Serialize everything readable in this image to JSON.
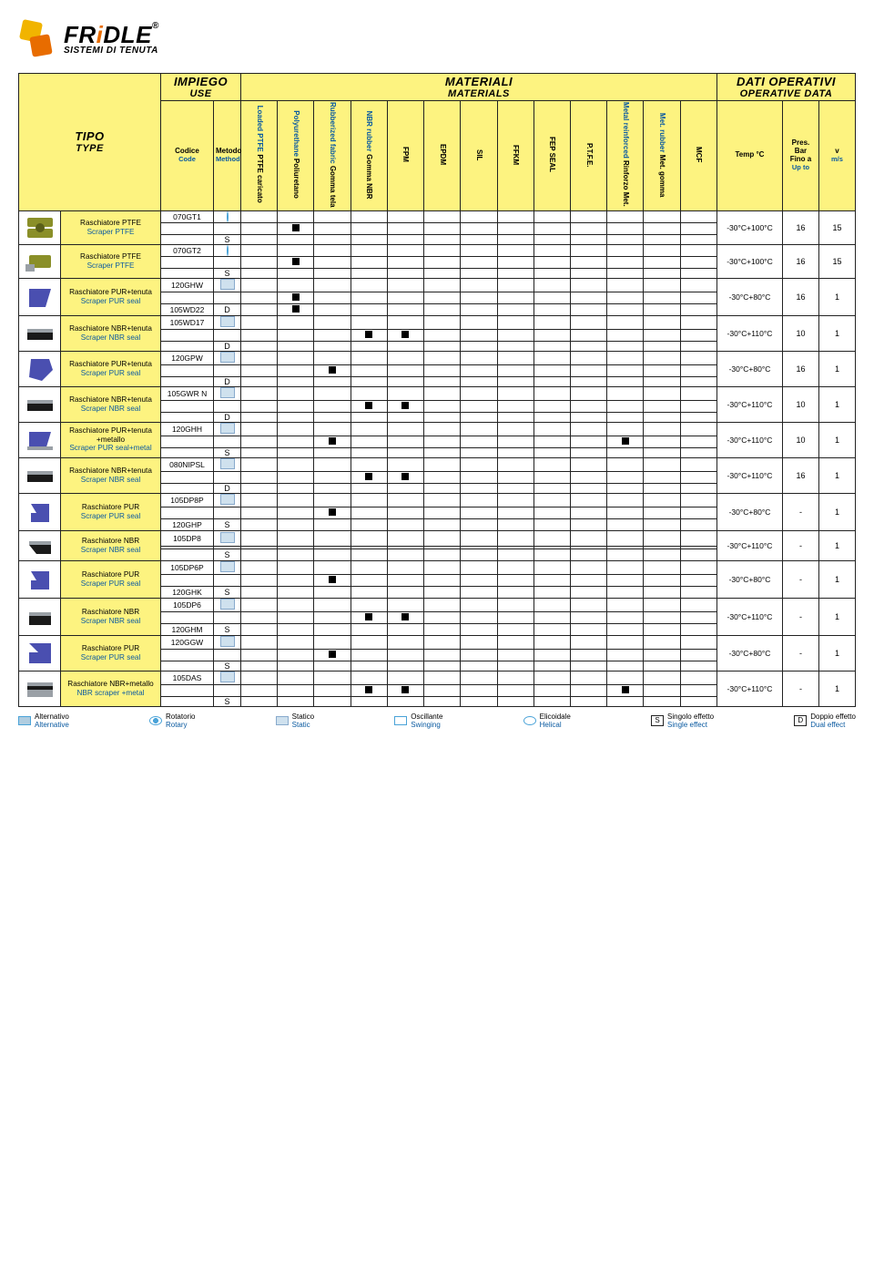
{
  "brand": {
    "name": "FRiDLE",
    "tagline": "SISTEMI DI TENUTA",
    "reg": "®"
  },
  "headers": {
    "tipo_it": "TIPO",
    "tipo_en": "TYPE",
    "impiego_it": "IMPIEGO",
    "impiego_en": "USE",
    "materiali_it": "MATERIALI",
    "materiali_en": "MATERIALS",
    "dati_it": "DATI OPERATIVI",
    "dati_en": "OPERATIVE DATA",
    "codice_it": "Codice",
    "codice_en": "Code",
    "metodo_it": "Metodo",
    "metodo_en": "Method",
    "temp": "Temp °C",
    "pres_it": "Pres. Bar",
    "pres_sub_it": "Fino a",
    "pres_en": "Up to",
    "v_it": "v",
    "v_en": "m/s"
  },
  "material_cols": [
    {
      "it": "PTFE caricato",
      "en": "Loaded PTFE"
    },
    {
      "it": "Poliuretano",
      "en": "Polyurethane"
    },
    {
      "it": "Gomma tela",
      "en": "Rubberized fabric"
    },
    {
      "it": "Gomma NBR",
      "en": "NBR rubber"
    },
    {
      "it": "FPM",
      "en": ""
    },
    {
      "it": "EPDM",
      "en": ""
    },
    {
      "it": "SIL",
      "en": ""
    },
    {
      "it": "FFKM",
      "en": ""
    },
    {
      "it": "FEP SEAL",
      "en": ""
    },
    {
      "it": "P.T.F.E.",
      "en": ""
    },
    {
      "it": "Rinforzo Met.",
      "en": "Metal reinforced"
    },
    {
      "it": "Met. gomma",
      "en": "Met. rubber"
    },
    {
      "it": "MCF",
      "en": ""
    }
  ],
  "rows": [
    {
      "name_it": "Raschiatore PTFE",
      "name_en": "Scraper PTFE",
      "codes": [
        "070GT1"
      ],
      "methods": [
        "rot",
        "",
        "S"
      ],
      "materials": [
        0,
        1,
        0,
        0,
        0,
        0,
        0,
        0,
        0,
        0,
        0,
        0,
        0
      ],
      "temp": "-30°C+100°C",
      "bar": "16",
      "v": "15",
      "shape": "ptfe1"
    },
    {
      "name_it": "Raschiatore PTFE",
      "name_en": "Scraper PTFE",
      "codes": [
        "070GT2"
      ],
      "methods": [
        "rot",
        "",
        "S"
      ],
      "materials": [
        0,
        1,
        0,
        0,
        0,
        0,
        0,
        0,
        0,
        0,
        0,
        0,
        0
      ],
      "temp": "-30°C+100°C",
      "bar": "16",
      "v": "15",
      "shape": "ptfe2"
    },
    {
      "name_it": "Raschiatore PUR+tenuta",
      "name_en": "Scraper PUR seal",
      "codes": [
        "120GHW",
        "105WD22"
      ],
      "methods": [
        "stat",
        "",
        "D"
      ],
      "materials": [
        0,
        1,
        0,
        0,
        0,
        0,
        0,
        0,
        0,
        0,
        0,
        0,
        0
      ],
      "mat_extra_row": [
        0,
        1,
        0,
        0,
        0,
        0,
        0,
        0,
        0,
        0,
        0,
        0,
        0
      ],
      "temp": "-30°C+80°C",
      "bar": "16",
      "v": "1",
      "shape": "pur-blue"
    },
    {
      "name_it": "Raschiatore NBR+tenuta",
      "name_en": "Scraper NBR seal",
      "codes": [
        "105WD17"
      ],
      "methods": [
        "stat",
        "",
        "D"
      ],
      "materials": [
        0,
        0,
        0,
        1,
        1,
        0,
        0,
        0,
        0,
        0,
        0,
        0,
        0
      ],
      "temp": "-30°C+110°C",
      "bar": "10",
      "v": "1",
      "shape": "nbr-strip"
    },
    {
      "name_it": "Raschiatore PUR+tenuta",
      "name_en": "Scraper PUR seal",
      "codes": [
        "120GPW"
      ],
      "methods": [
        "stat",
        "",
        "D"
      ],
      "materials": [
        0,
        0,
        1,
        0,
        0,
        0,
        0,
        0,
        0,
        0,
        0,
        0,
        0
      ],
      "temp": "-30°C+80°C",
      "bar": "16",
      "v": "1",
      "shape": "pur-blue2"
    },
    {
      "name_it": "Raschiatore NBR+tenuta",
      "name_en": "Scraper NBR seal",
      "codes": [
        "105GWR N"
      ],
      "methods": [
        "stat",
        "",
        "D"
      ],
      "materials": [
        0,
        0,
        0,
        1,
        1,
        0,
        0,
        0,
        0,
        0,
        0,
        0,
        0
      ],
      "temp": "-30°C+110°C",
      "bar": "10",
      "v": "1",
      "shape": "nbr-strip"
    },
    {
      "name_it": "Raschiatore PUR+tenuta +metallo",
      "name_en": "Scraper PUR seal+metal",
      "codes": [
        "120GHH"
      ],
      "methods": [
        "stat",
        "",
        "S"
      ],
      "materials": [
        0,
        0,
        1,
        0,
        0,
        0,
        0,
        0,
        0,
        0,
        1,
        0,
        0
      ],
      "temp": "-30°C+110°C",
      "bar": "10",
      "v": "1",
      "shape": "pur-metal"
    },
    {
      "name_it": "Raschiatore NBR+tenuta",
      "name_en": "Scraper NBR seal",
      "codes": [
        "080NIPSL"
      ],
      "methods": [
        "stat",
        "",
        "D"
      ],
      "materials": [
        0,
        0,
        0,
        1,
        1,
        0,
        0,
        0,
        0,
        0,
        0,
        0,
        0
      ],
      "temp": "-30°C+110°C",
      "bar": "16",
      "v": "1",
      "shape": "nbr-strip"
    },
    {
      "name_it": "Raschiatore PUR",
      "name_en": "Scraper PUR seal",
      "codes": [
        "105DP8P",
        "120GHP"
      ],
      "methods": [
        "stat",
        "",
        "S"
      ],
      "materials": [
        0,
        0,
        1,
        0,
        0,
        0,
        0,
        0,
        0,
        0,
        0,
        0,
        0
      ],
      "temp": "-30°C+80°C",
      "bar": "-",
      "v": "1",
      "shape": "pur-solid"
    },
    {
      "name_it": "Raschiatore NBR",
      "name_en": "Scraper NBR seal",
      "codes": [
        "105DP8"
      ],
      "methods": [
        "stat",
        "",
        "S"
      ],
      "materials": [
        0,
        0,
        0,
        0,
        0,
        0,
        0,
        0,
        0,
        0,
        0,
        0,
        0
      ],
      "temp": "-30°C+110°C",
      "bar": "-",
      "v": "1",
      "shape": "nbr-small"
    },
    {
      "name_it": "Raschiatore PUR",
      "name_en": "Scraper PUR seal",
      "codes": [
        "105DP6P",
        "120GHK"
      ],
      "methods": [
        "stat",
        "",
        "S"
      ],
      "materials": [
        0,
        0,
        1,
        0,
        0,
        0,
        0,
        0,
        0,
        0,
        0,
        0,
        0
      ],
      "temp": "-30°C+80°C",
      "bar": "-",
      "v": "1",
      "shape": "pur-solid"
    },
    {
      "name_it": "Raschiatore NBR",
      "name_en": "Scraper NBR seal",
      "codes": [
        "105DP6",
        "120GHM"
      ],
      "methods": [
        "stat",
        "",
        "S"
      ],
      "materials": [
        0,
        0,
        0,
        1,
        1,
        0,
        0,
        0,
        0,
        0,
        0,
        0,
        0
      ],
      "temp": "-30°C+110°C",
      "bar": "-",
      "v": "1",
      "shape": "nbr-small2"
    },
    {
      "name_it": "Raschiatore PUR",
      "name_en": "Scraper PUR seal",
      "codes": [
        "120GGW"
      ],
      "methods": [
        "stat",
        "",
        "S"
      ],
      "materials": [
        0,
        0,
        1,
        0,
        0,
        0,
        0,
        0,
        0,
        0,
        0,
        0,
        0
      ],
      "temp": "-30°C+80°C",
      "bar": "-",
      "v": "1",
      "shape": "pur-big"
    },
    {
      "name_it": "Raschiatore NBR+metallo",
      "name_en": "NBR scraper +metal",
      "codes": [
        "105DAS"
      ],
      "methods": [
        "stat",
        "",
        "S"
      ],
      "materials": [
        0,
        0,
        0,
        1,
        1,
        0,
        0,
        0,
        0,
        0,
        1,
        0,
        0
      ],
      "temp": "-30°C+110°C",
      "bar": "-",
      "v": "1",
      "shape": "nbr-metal"
    }
  ],
  "legend": [
    {
      "it": "Alternativo",
      "en": "Alternative",
      "cls": "lg-alt"
    },
    {
      "it": "Rotatorio",
      "en": "Rotary",
      "cls": "lg-rot"
    },
    {
      "it": "Statico",
      "en": "Static",
      "cls": "lg-stat"
    },
    {
      "it": "Oscillante",
      "en": "Swinging",
      "cls": "lg-osc"
    },
    {
      "it": "Elicoidale",
      "en": "Helical",
      "cls": "lg-hel"
    },
    {
      "it": "Singolo effetto",
      "en": "Single effect",
      "letter": "S"
    },
    {
      "it": "Doppio effetto",
      "en": "Dual effect",
      "letter": "D"
    }
  ],
  "colors": {
    "yellow": "#fdf380",
    "blue": "#0a5aa0",
    "olive": "#8a8f28",
    "steel": "#9aa0a6",
    "purplue": "#4a4fb0",
    "darkblue": "#2b3468"
  }
}
